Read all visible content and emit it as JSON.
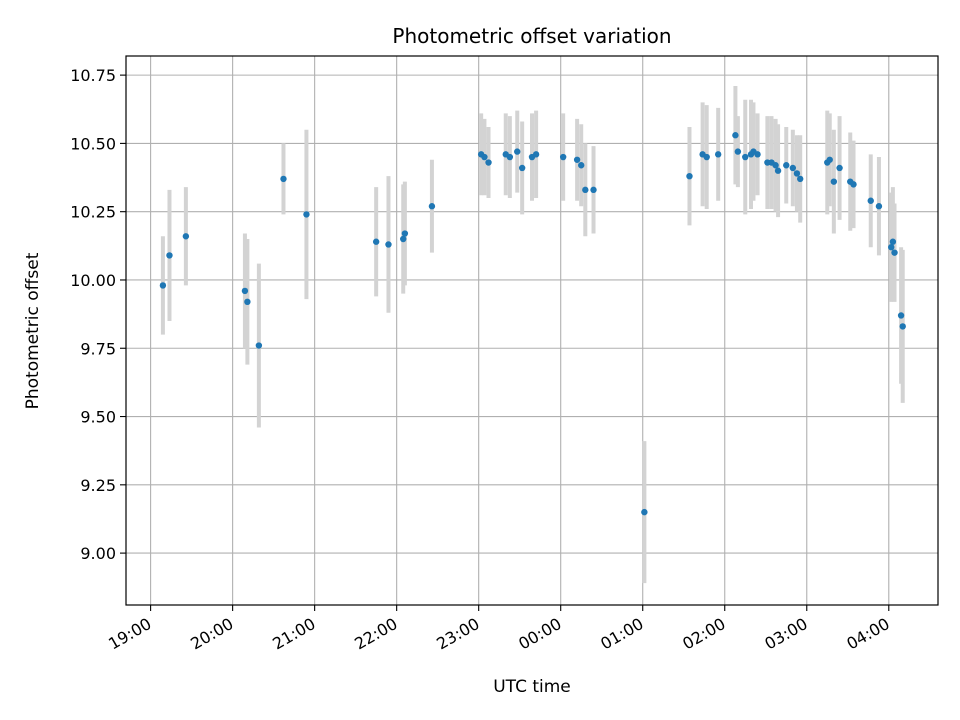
{
  "chart_data": {
    "type": "scatter",
    "title": "Photometric offset variation",
    "xlabel": "UTC time",
    "ylabel": "Photometric offset",
    "grid": true,
    "x_tick_labels": [
      "19:00",
      "20:00",
      "21:00",
      "22:00",
      "23:00",
      "00:00",
      "01:00",
      "02:00",
      "03:00",
      "04:00"
    ],
    "y_tick_labels": [
      "9.00",
      "9.25",
      "9.50",
      "9.75",
      "10.00",
      "10.25",
      "10.50",
      "10.75"
    ],
    "y_ticks": [
      9.0,
      9.25,
      9.5,
      9.75,
      10.0,
      10.25,
      10.5,
      10.75
    ],
    "xlim": [
      -0.3,
      9.6
    ],
    "ylim": [
      8.81,
      10.82
    ],
    "x_unit": "hours since 19:00 UTC",
    "colors": {
      "point": "#1f77b4",
      "errorbar": "#d3d3d3",
      "grid": "#b0b0b0"
    },
    "series": [
      {
        "x": [
          0.15,
          0.23,
          0.43,
          1.15,
          1.18,
          1.32,
          1.62,
          1.9,
          2.75,
          2.9,
          3.08,
          3.1,
          3.43,
          4.03,
          4.07,
          4.12,
          4.33,
          4.38,
          4.47,
          4.53,
          4.65,
          4.7,
          5.03,
          5.2,
          5.25,
          5.3,
          5.4,
          6.02,
          6.57,
          6.73,
          6.78,
          6.92,
          7.13,
          7.16,
          7.25,
          7.32,
          7.35,
          7.4,
          7.52,
          7.57,
          7.62,
          7.65,
          7.75,
          7.83,
          7.88,
          7.92,
          8.25,
          8.28,
          8.33,
          8.4,
          8.53,
          8.57,
          8.78,
          8.88,
          9.03,
          9.05,
          9.07,
          9.15,
          9.17
        ],
        "y": [
          9.98,
          10.09,
          10.16,
          9.96,
          9.92,
          9.76,
          10.37,
          10.24,
          10.14,
          10.13,
          10.15,
          10.17,
          10.27,
          10.46,
          10.45,
          10.43,
          10.46,
          10.45,
          10.47,
          10.41,
          10.45,
          10.46,
          10.45,
          10.44,
          10.42,
          10.33,
          10.33,
          9.15,
          10.38,
          10.46,
          10.45,
          10.46,
          10.53,
          10.47,
          10.45,
          10.46,
          10.47,
          10.46,
          10.43,
          10.43,
          10.42,
          10.4,
          10.42,
          10.41,
          10.39,
          10.37,
          10.43,
          10.44,
          10.36,
          10.41,
          10.36,
          10.35,
          10.29,
          10.27,
          10.12,
          10.14,
          10.1,
          9.87,
          9.83
        ],
        "err": [
          0.18,
          0.24,
          0.18,
          0.21,
          0.23,
          0.3,
          0.13,
          0.31,
          0.2,
          0.25,
          0.2,
          0.19,
          0.17,
          0.15,
          0.14,
          0.13,
          0.15,
          0.15,
          0.15,
          0.17,
          0.16,
          0.16,
          0.16,
          0.15,
          0.15,
          0.17,
          0.16,
          0.26,
          0.18,
          0.19,
          0.19,
          0.17,
          0.18,
          0.13,
          0.21,
          0.2,
          0.18,
          0.15,
          0.17,
          0.17,
          0.17,
          0.17,
          0.14,
          0.14,
          0.14,
          0.16,
          0.19,
          0.17,
          0.19,
          0.19,
          0.18,
          0.16,
          0.17,
          0.18,
          0.2,
          0.2,
          0.18,
          0.25,
          0.28
        ]
      }
    ]
  }
}
